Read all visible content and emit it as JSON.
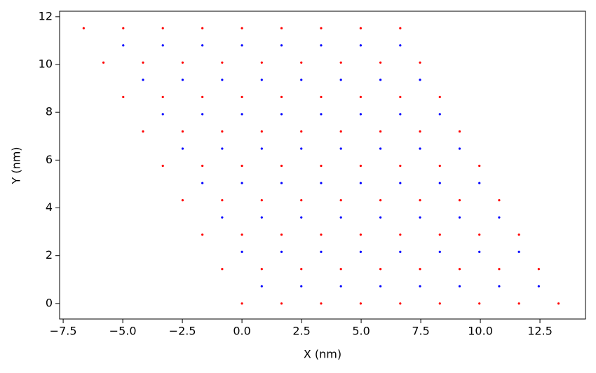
{
  "chart_data": {
    "type": "scatter",
    "xlabel": "X (nm)",
    "ylabel": "Y (nm)",
    "xlim": [
      -7.65,
      14.41
    ],
    "ylim": [
      -0.65,
      12.23
    ],
    "xticks": [
      {
        "value": -7.5,
        "label": "−7.5"
      },
      {
        "value": -5,
        "label": "−5.0"
      },
      {
        "value": -2.5,
        "label": "−2.5"
      },
      {
        "value": 0,
        "label": "0.0"
      },
      {
        "value": 2.5,
        "label": "2.5"
      },
      {
        "value": 5,
        "label": "5.0"
      },
      {
        "value": 7.5,
        "label": "7.5"
      },
      {
        "value": 10,
        "label": "10.0"
      },
      {
        "value": 12.5,
        "label": "12.5"
      }
    ],
    "yticks": [
      0,
      2,
      4,
      6,
      8,
      10,
      12
    ],
    "grid": false,
    "series": [
      {
        "color": "#ff0000",
        "x": [
          0,
          1.66,
          3.32,
          4.98,
          6.64,
          8.3,
          9.96,
          11.62,
          13.28,
          -0.83,
          0.83,
          2.49,
          4.15,
          5.81,
          7.47,
          9.13,
          10.79,
          12.45,
          -1.66,
          0,
          1.66,
          3.32,
          4.98,
          6.64,
          8.3,
          9.96,
          11.62,
          -2.49,
          -0.83,
          0.83,
          2.49,
          4.15,
          5.81,
          7.47,
          9.13,
          10.79,
          -3.32,
          -1.66,
          0,
          1.66,
          3.32,
          4.98,
          6.64,
          8.3,
          9.96,
          -4.15,
          -2.49,
          -0.83,
          0.83,
          2.49,
          4.15,
          5.81,
          7.47,
          9.13,
          -4.98,
          -3.32,
          -1.66,
          0,
          1.66,
          3.32,
          4.98,
          6.64,
          8.3,
          -5.81,
          -4.15,
          -2.49,
          -0.83,
          0.83,
          2.49,
          4.15,
          5.81,
          7.47,
          -6.64,
          -4.98,
          -3.32,
          -1.66,
          0,
          1.66,
          3.32,
          4.98,
          6.64
        ],
        "values": [
          0,
          0,
          0,
          0,
          0,
          0,
          0,
          0,
          0,
          1.44,
          1.44,
          1.44,
          1.44,
          1.44,
          1.44,
          1.44,
          1.44,
          1.44,
          2.88,
          2.88,
          2.88,
          2.88,
          2.88,
          2.88,
          2.88,
          2.88,
          2.88,
          4.32,
          4.32,
          4.32,
          4.32,
          4.32,
          4.32,
          4.32,
          4.32,
          4.32,
          5.76,
          5.76,
          5.76,
          5.76,
          5.76,
          5.76,
          5.76,
          5.76,
          5.76,
          7.2,
          7.2,
          7.2,
          7.2,
          7.2,
          7.2,
          7.2,
          7.2,
          7.2,
          8.64,
          8.64,
          8.64,
          8.64,
          8.64,
          8.64,
          8.64,
          8.64,
          8.64,
          10.08,
          10.08,
          10.08,
          10.08,
          10.08,
          10.08,
          10.08,
          10.08,
          10.08,
          11.52,
          11.52,
          11.52,
          11.52,
          11.52,
          11.52,
          11.52,
          11.52,
          11.52
        ]
      },
      {
        "color": "#0000ff",
        "x": [
          0.83,
          2.49,
          4.15,
          5.81,
          7.47,
          9.13,
          10.79,
          12.45,
          0,
          1.66,
          3.32,
          4.98,
          6.64,
          8.3,
          9.96,
          11.62,
          -0.83,
          0.83,
          2.49,
          4.15,
          5.81,
          7.47,
          9.13,
          10.79,
          -1.66,
          0,
          1.66,
          3.32,
          4.98,
          6.64,
          8.3,
          9.96,
          -2.49,
          -0.83,
          0.83,
          2.49,
          4.15,
          5.81,
          7.47,
          9.13,
          -3.32,
          -1.66,
          0,
          1.66,
          3.32,
          4.98,
          6.64,
          8.3,
          -4.15,
          -2.49,
          -0.83,
          0.83,
          2.49,
          4.15,
          5.81,
          7.47,
          -4.98,
          -3.32,
          -1.66,
          0,
          1.66,
          3.32,
          4.98,
          6.64
        ],
        "values": [
          0.72,
          0.72,
          0.72,
          0.72,
          0.72,
          0.72,
          0.72,
          0.72,
          2.16,
          2.16,
          2.16,
          2.16,
          2.16,
          2.16,
          2.16,
          2.16,
          3.6,
          3.6,
          3.6,
          3.6,
          3.6,
          3.6,
          3.6,
          3.6,
          5.04,
          5.04,
          5.04,
          5.04,
          5.04,
          5.04,
          5.04,
          5.04,
          6.48,
          6.48,
          6.48,
          6.48,
          6.48,
          6.48,
          6.48,
          6.48,
          7.92,
          7.92,
          7.92,
          7.92,
          7.92,
          7.92,
          7.92,
          7.92,
          9.36,
          9.36,
          9.36,
          9.36,
          9.36,
          9.36,
          9.36,
          9.36,
          10.8,
          10.8,
          10.8,
          10.8,
          10.8,
          10.8,
          10.8,
          10.8
        ]
      }
    ]
  }
}
